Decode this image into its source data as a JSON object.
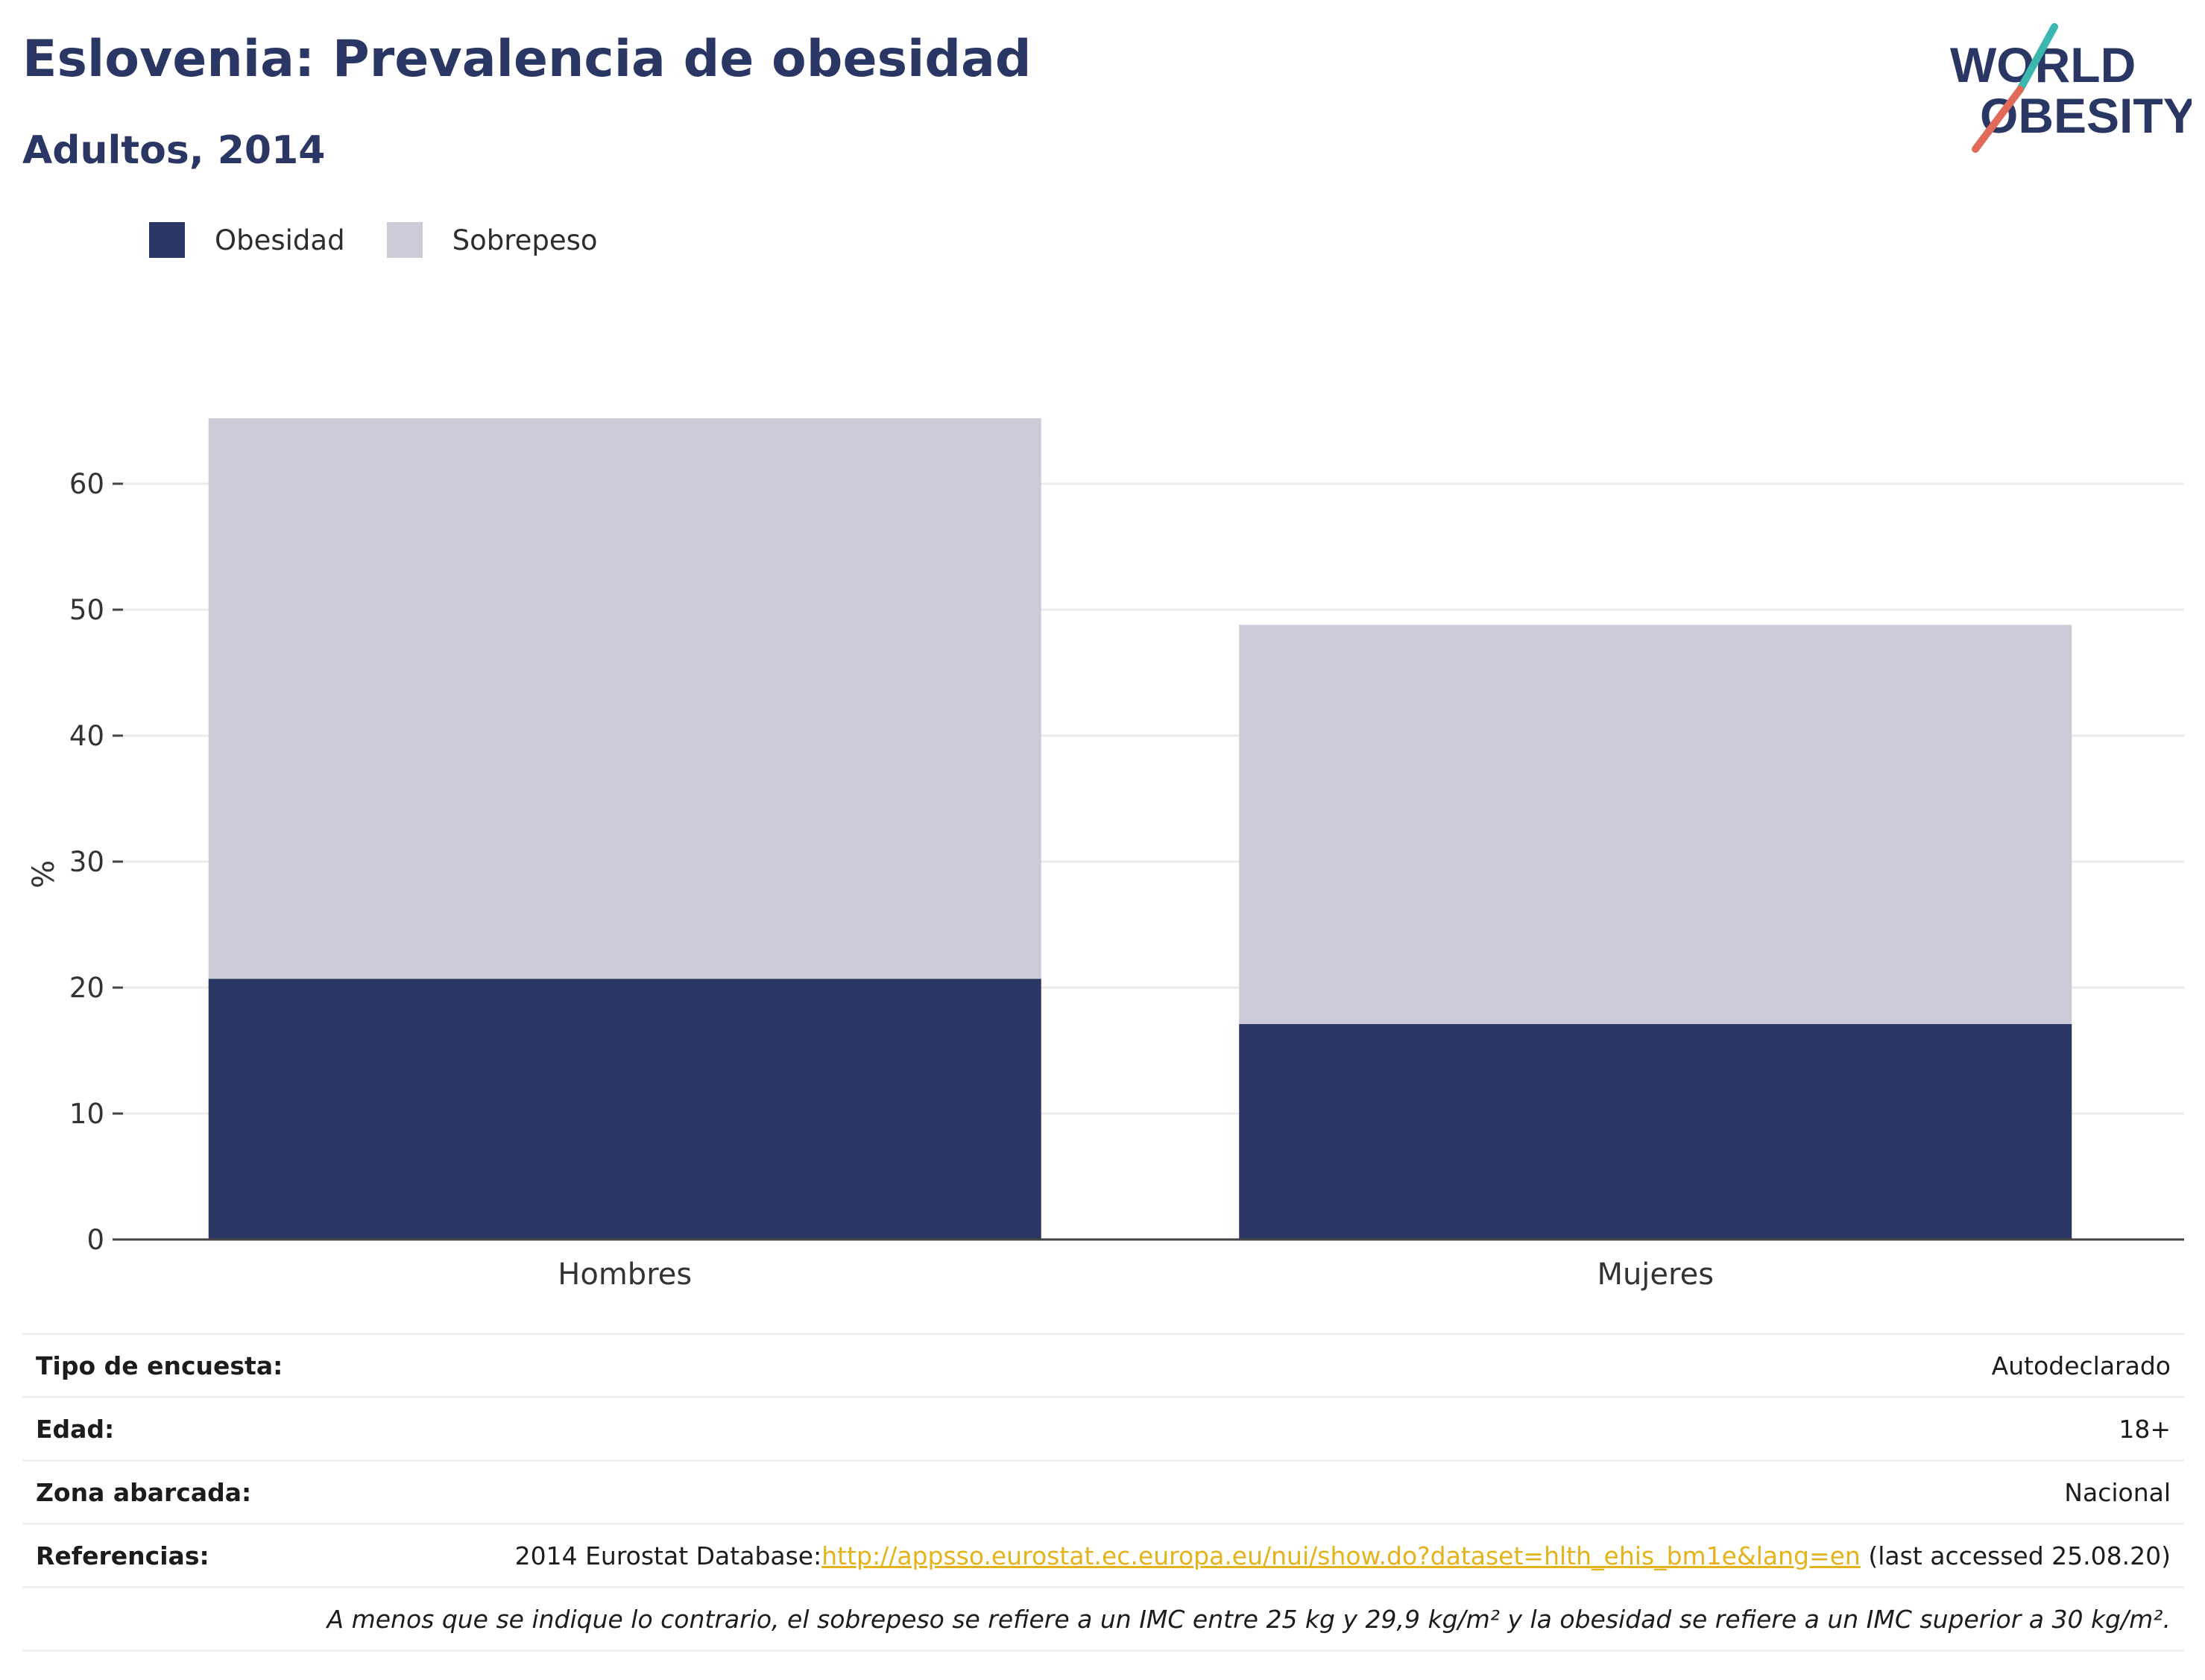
{
  "header": {
    "title": "Eslovenia: Prevalencia de obesidad",
    "subtitle": "Adultos, 2014"
  },
  "logo": {
    "line1": "WORLD",
    "line2": "OBESITY"
  },
  "colors": {
    "obesidad": "#2a3663",
    "sobrepeso": "#cacbd7",
    "accent": "#e4b21b"
  },
  "chart_data": {
    "type": "bar",
    "stacked": true,
    "categories": [
      "Hombres",
      "Mujeres"
    ],
    "series": [
      {
        "name": "Obesidad",
        "values": [
          20.7,
          17.1
        ]
      },
      {
        "name": "Sobrepeso",
        "values": [
          44.5,
          31.7
        ]
      }
    ],
    "ylabel": "%",
    "ylim": [
      0,
      70
    ],
    "yticks": [
      0,
      10,
      20,
      30,
      40,
      50,
      60
    ],
    "grid": true,
    "legend_position": "top-left"
  },
  "meta": {
    "rows": [
      {
        "label": "Tipo de encuesta:",
        "value": "Autodeclarado"
      },
      {
        "label": "Edad:",
        "value": "18+"
      },
      {
        "label": "Zona abarcada:",
        "value": "Nacional"
      }
    ],
    "ref_label": "Referencias:",
    "ref_prefix": "2014 Eurostat Database:",
    "ref_link": "http://appsso.eurostat.ec.europa.eu/nui/show.do?dataset=hlth_ehis_bm1e&lang=en",
    "ref_suffix": " (last accessed 25.08.20)",
    "note": "A menos que se indique lo contrario, el sobrepeso se refiere a un IMC entre 25 kg y 29,9 kg/m² y la obesidad se refiere a un IMC superior a 30 kg/m²."
  }
}
